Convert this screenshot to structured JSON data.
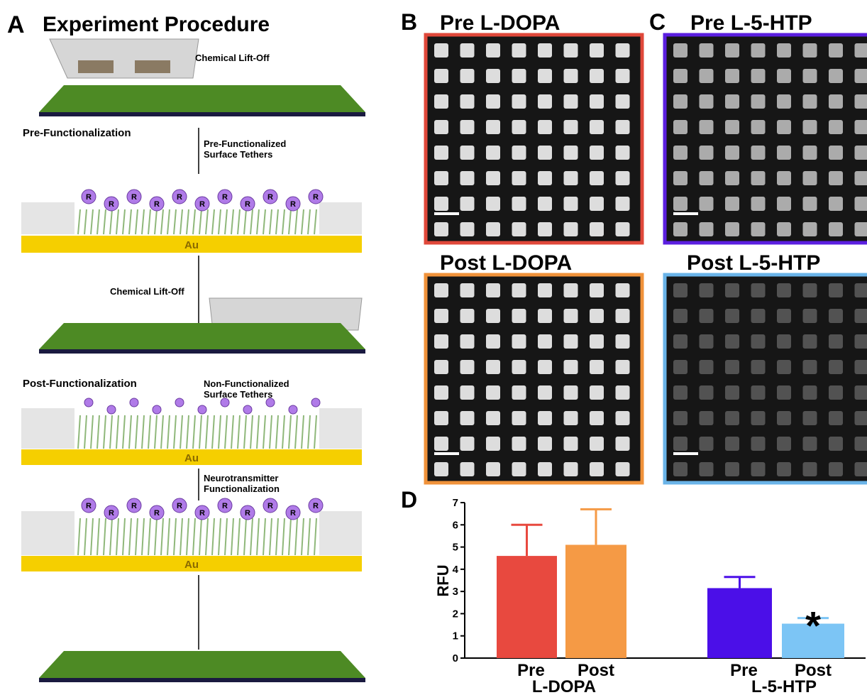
{
  "panel_a": {
    "letter": "A",
    "title": "Experiment Procedure",
    "lift_off_1": "Chemical Lift-Off",
    "pre_functionalization": "Pre-Functionalization",
    "pre_tethers": [
      "Pre-Functionalized",
      "Surface Tethers"
    ],
    "tether_label": "R",
    "gold": "Au",
    "lift_off_2": "Chemical Lift-Off",
    "post_functionalization": "Post-Functionalization",
    "non_tethers": [
      "Non-Functionalized",
      "Surface Tethers"
    ],
    "nt_functionalization": [
      "Neurotransmitter",
      "Functionalization"
    ]
  },
  "panel_b": {
    "letter": "B",
    "pre_title": "Pre L-DOPA",
    "post_title": "Post L-DOPA"
  },
  "panel_c": {
    "letter": "C",
    "pre_title": "Pre L-5-HTP",
    "post_title": "Post L-5-HTP"
  },
  "panel_d": {
    "letter": "D"
  },
  "chart_data": {
    "type": "bar",
    "ylabel": "RFU",
    "categories": [
      "Pre",
      "Post",
      "Pre",
      "Post"
    ],
    "groups": [
      "L-DOPA",
      "L-5-HTP"
    ],
    "values": [
      4.6,
      5.1,
      3.15,
      1.55
    ],
    "errors": [
      1.4,
      1.6,
      0.5,
      0.25
    ],
    "colors": [
      "#e8493f",
      "#f59a45",
      "#4b0fe8",
      "#7cc5f5"
    ],
    "annotation": "*",
    "ylim": [
      0,
      7
    ],
    "yticks": [
      0,
      1,
      2,
      3,
      4,
      5,
      6,
      7
    ]
  }
}
